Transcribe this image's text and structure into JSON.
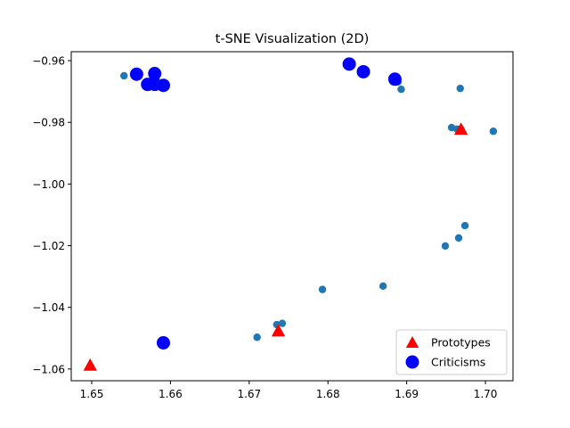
{
  "chart_data": {
    "type": "scatter",
    "title": "t-SNE Visualization (2D)",
    "xlabel": "",
    "ylabel": "",
    "xlim": [
      1.6474,
      1.7035
    ],
    "ylim": [
      -1.0638,
      -0.9571
    ],
    "y_inverted": true,
    "grid": false,
    "legend_position": "lower-right",
    "x_ticks": [
      1.65,
      1.66,
      1.67,
      1.68,
      1.69,
      1.7
    ],
    "x_tick_labels": [
      "1.65",
      "1.66",
      "1.67",
      "1.68",
      "1.69",
      "1.70"
    ],
    "y_ticks": [
      -0.96,
      -0.98,
      -1.0,
      -1.02,
      -1.04,
      -1.06
    ],
    "y_tick_labels": [
      "−0.96",
      "−0.98",
      "−1.00",
      "−1.02",
      "−1.04",
      "−1.06"
    ],
    "series": [
      {
        "marker": "circle-small",
        "color": "#1f77b4",
        "points": [
          [
            1.6541,
            -0.9649
          ],
          [
            1.6582,
            -0.9664
          ],
          [
            1.6573,
            -0.9679
          ],
          [
            1.6587,
            -0.9679
          ],
          [
            1.6592,
            -0.9682
          ],
          [
            1.6889,
            -0.9669
          ],
          [
            1.6893,
            -0.9693
          ],
          [
            1.6968,
            -0.969
          ],
          [
            1.6957,
            -0.9817
          ],
          [
            1.6964,
            -0.9822
          ],
          [
            1.6969,
            -0.9822
          ],
          [
            1.701,
            -0.9829
          ],
          [
            1.6974,
            -1.0135
          ],
          [
            1.6966,
            -1.0175
          ],
          [
            1.6949,
            -1.0201
          ],
          [
            1.687,
            -1.0331
          ],
          [
            1.6793,
            -1.0342
          ],
          [
            1.6742,
            -1.0452
          ],
          [
            1.6735,
            -1.0456
          ],
          [
            1.671,
            -1.0497
          ]
        ]
      },
      {
        "name": "Prototypes",
        "marker": "triangle",
        "color": "#ff0000",
        "points": [
          [
            1.6498,
            -1.059
          ],
          [
            1.6737,
            -1.0479
          ],
          [
            1.6969,
            -0.9825
          ]
        ]
      },
      {
        "name": "Criticisms",
        "marker": "circle-large",
        "color": "#0000ff",
        "points": [
          [
            1.6557,
            -0.9644
          ],
          [
            1.658,
            -0.9642
          ],
          [
            1.6571,
            -0.9677
          ],
          [
            1.658,
            -0.9677
          ],
          [
            1.6591,
            -0.968
          ],
          [
            1.6827,
            -0.9611
          ],
          [
            1.6845,
            -0.9636
          ],
          [
            1.6885,
            -0.966
          ],
          [
            1.6591,
            -1.0515
          ]
        ]
      }
    ]
  }
}
